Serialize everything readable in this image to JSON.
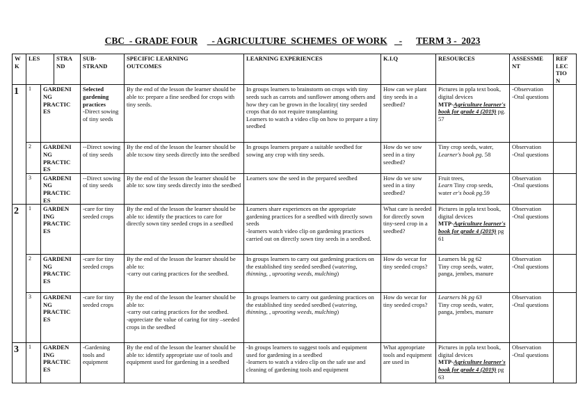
{
  "title": [
    "CBC  - GRADE FOUR",
    "  - AGRICULTURE  SCHEMES  OF WORK",
    "  -",
    "TERM 3 -  2023"
  ],
  "headers": {
    "wk": "W\nK",
    "les": "LES",
    "strand": "STRA\nND",
    "substrand": "SUB-\nSTRAND",
    "outcomes": "SPECIFIC LEARNING\nOUTCOMES",
    "experiences": "LEARNING EXPERIENCES",
    "kiq": "K.I.Q",
    "resources": "RESOURCES",
    "assessment": "ASSESSME\nNT",
    "reflection": "REF\nLEC\nTIO\nN"
  },
  "rows": [
    {
      "week": "1",
      "lesson": "1",
      "strand": "GARDENI\nNG\nPRACTIC\nES",
      "cells": {
        "substrand": [
          {
            "t": "Selected gardening practices",
            "b": true
          },
          {
            "t": "\n-Direct sowing of tiny seeds"
          }
        ],
        "outcomes": [
          {
            "t": "By the end of the lesson the learner should be able to: prepare a fine seedbed for crops with tiny seeds."
          }
        ],
        "experiences": [
          {
            "t": "In groups learners to brainstorm on crops with tiny seeds such as carrots and sunflower among others and how they can be grown in the locality( tiny seeded crops that do not require transplanting\nLearners to watch a video clip on how to prepare a tiny seedbed"
          }
        ],
        "kiq": [
          {
            "t": "How can we plant tiny seeds in a seedbed?"
          }
        ],
        "resources": [
          {
            "t": "Pictures in ppla text book, digital devices\n"
          },
          {
            "t": "MTP-",
            "b": true
          },
          {
            "t": "Agriculture learner's book for grade 4 (2019)",
            "b": true,
            "i": true,
            "u": true
          },
          {
            "t": " pg. 57"
          }
        ],
        "assessment": [
          {
            "t": "-Observation\n-Oral questions"
          }
        ],
        "reflection": []
      }
    },
    {
      "lesson": "2",
      "strand": "GARDENI\nNG\nPRACTIC\nES",
      "cells": {
        "substrand": [
          {
            "t": "--Direct sowing of tiny seeds"
          }
        ],
        "outcomes": [
          {
            "t": "By the end of the lesson the learner should be able to:sow tiny seeds directly into the seedbed"
          }
        ],
        "experiences": [
          {
            "t": "In groups learners prepare a suitable seedbed for sowing any crop with tiny seeds."
          }
        ],
        "kiq": [
          {
            "t": "How do we sow seed in a tiny seedbed?"
          }
        ],
        "resources": [
          {
            "t": "Tiny crop seeds, water,\n"
          },
          {
            "t": "Learner's book pg",
            "i": true
          },
          {
            "t": ". 58"
          }
        ],
        "assessment": [
          {
            "t": "Observation\n-Oral questions"
          }
        ],
        "reflection": []
      }
    },
    {
      "lesson": "3",
      "strand": "GARDENI\nNG\nPRACTIC\nES",
      "cells": {
        "substrand": [
          {
            "t": "--Direct sowing of tiny seeds"
          }
        ],
        "outcomes": [
          {
            "t": "By the end of the lesson the learner should be able to: sow tiny seeds directly into the seedbed"
          }
        ],
        "experiences": [
          {
            "t": "Learners sow the seed in the prepared seedbed"
          }
        ],
        "kiq": [
          {
            "t": "How do we sow seed in a tiny seedbed?"
          }
        ],
        "resources": [
          {
            "t": "Fruit trees,\n"
          },
          {
            "t": "Learn",
            "i": true
          },
          {
            "t": " Tiny crop seeds, water "
          },
          {
            "t": "er's book pg",
            "i": true
          },
          {
            "t": ".59"
          }
        ],
        "assessment": [
          {
            "t": "Observation\n-Oral questions"
          }
        ],
        "reflection": []
      }
    },
    {
      "week": "2",
      "lesson": "1",
      "strand": "GARDEN\nING\nPRACTIC\nES",
      "cells": {
        "substrand": [
          {
            "t": "-care for tiny seeded crops"
          }
        ],
        "outcomes": [
          {
            "t": "By the end of the lesson the learner should be able to: identify the practices to care for directly sown tiny seeded crops in a seedbed"
          }
        ],
        "experiences": [
          {
            "t": "Learners share experiences on the appropriate gardening practices for a seedbed with directly sown seeds\n-learners watch video clip on gardening practices carried out on directly sown tiny seeds in a seedbed."
          }
        ],
        "kiq": [
          {
            "t": "What care is needed for directly sown tiny-seed crop in a seedbed?"
          }
        ],
        "resources": [
          {
            "t": "Pictures in ppla text book, digital devices\n"
          },
          {
            "t": "MTP-",
            "b": true
          },
          {
            "t": "Agriculture learner's book for grade 4 (2019)",
            "b": true,
            "i": true,
            "u": true
          },
          {
            "t": " pg 61"
          }
        ],
        "assessment": [
          {
            "t": "Observation\n-Oral questions"
          }
        ],
        "reflection": []
      }
    },
    {
      "lesson": "2",
      "strand": "GARDENI\nNG\nPRACTIC\nES",
      "cells": {
        "substrand": [
          {
            "t": "-care for tiny seeded crops"
          }
        ],
        "outcomes": [
          {
            "t": "By the end of the lesson the learner should be able to:\n-carry out caring practices for the seedbed."
          }
        ],
        "experiences": [
          {
            "t": "In groups learners to carry out gardening practices on the established tiny seeded seedbed ("
          },
          {
            "t": "watering, thinning, , uprooting weeds, mulching",
            "i": true
          },
          {
            "t": ")"
          }
        ],
        "kiq": [
          {
            "t": "How do wecar for tiny seeded crops?"
          }
        ],
        "resources": [
          {
            "t": "Learners bk pg 62\nTiny crop seeds, water, panga, jembes, manure"
          }
        ],
        "assessment": [
          {
            "t": "Observation\n-Oral questions"
          }
        ],
        "reflection": []
      }
    },
    {
      "lesson": "3",
      "strand": "GARDENI\nNG\nPRACTIC\nES",
      "cells": {
        "substrand": [
          {
            "t": "-care for tiny seeded crops"
          }
        ],
        "outcomes": [
          {
            "t": "By the end of the lesson the learner should be able to:\n-carry out caring practices for the seedbed.\n-appreciate the value of caring for tiny –seeded crops in the seedbed"
          }
        ],
        "experiences": [
          {
            "t": "In groups learners to carry out gardening practices on the established tiny seeded seedbed ("
          },
          {
            "t": "watering, thinning, , uprooting weeds, mulching",
            "i": true
          },
          {
            "t": ")"
          }
        ],
        "kiq": [
          {
            "t": "How do wecar for tiny seeded crops?"
          }
        ],
        "resources": [
          {
            "t": "Learners bk pg 63",
            "i": true
          },
          {
            "t": "\nTiny crop seeds, water, panga, jembes, manure"
          }
        ],
        "assessment": [
          {
            "t": "Observation\n-Oral questions"
          }
        ],
        "reflection": []
      }
    },
    {
      "week": "3",
      "lesson": "1",
      "strand": "GARDEN\nING\nPRACTIC\nES",
      "cells": {
        "substrand": [
          {
            "t": "-Gardening tools and equipment"
          }
        ],
        "outcomes": [
          {
            "t": "By the end of the lesson the learner should be able to: identify appropriate use of tools and equipment used for gardening in a seedbed"
          }
        ],
        "experiences": [
          {
            "t": "-In groups learners to suggest tools and equipment used for gardening in a seedbed\n-learners to watch a video clip on the safe use and cleaning of gardening tools and equipment"
          }
        ],
        "kiq": [
          {
            "t": "What appropriate tools and equipment are used in"
          }
        ],
        "resources": [
          {
            "t": "Pictures in ppla text book, digital devices\n"
          },
          {
            "t": "MTP-",
            "b": true
          },
          {
            "t": "Agriculture learner's book for grade 4 (2019)",
            "b": true,
            "i": true,
            "u": true
          },
          {
            "t": " pg 63"
          }
        ],
        "assessment": [
          {
            "t": "Observation\n-Oral questions"
          }
        ],
        "reflection": []
      }
    }
  ]
}
